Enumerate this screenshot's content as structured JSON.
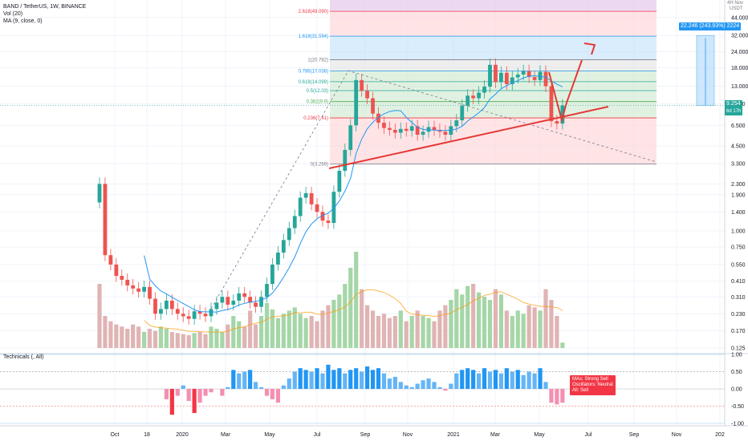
{
  "header": {
    "symbol": "BAND / TetherUS, 1W, BINANCE",
    "vol": "Vol (20)",
    "ma": "MA (9, close, 0)"
  },
  "top_right": {
    "scale": "4H Nov",
    "currency": "USDT"
  },
  "colors": {
    "up": "#26a69a",
    "down": "#ef5350",
    "vol_up": "#a5d6a7",
    "vol_down": "#e0b4b4",
    "ma": "#2196f3",
    "vol_ma": "#ff9800",
    "trend": "#e53935",
    "projection": "#2196f3"
  },
  "chart_data": [
    {
      "type": "candlestick",
      "title": "BAND / TetherUS, 1W, BINANCE",
      "y_scale": "log",
      "y_ticks": [
        "44.000",
        "32.000",
        "24.000",
        "18.000",
        "13.000",
        "9.500",
        "6.500",
        "4.500",
        "3.300",
        "2.300",
        "1.900",
        "1.400",
        "1.000",
        "0.750",
        "0.550",
        "0.410",
        "0.310",
        "0.230",
        "0.170",
        "0.125"
      ],
      "x_ticks": [
        "Oct",
        "18",
        "2020",
        "Mar",
        "May",
        "Jul",
        "Sep",
        "Nov",
        "2021",
        "Mar",
        "May",
        "Jul",
        "Sep",
        "Nov",
        "202"
      ],
      "closes": [
        2.3,
        0.65,
        0.55,
        0.45,
        0.42,
        0.38,
        0.36,
        0.34,
        0.37,
        0.3,
        0.23,
        0.25,
        0.29,
        0.25,
        0.23,
        0.22,
        0.21,
        0.24,
        0.23,
        0.22,
        0.25,
        0.28,
        0.31,
        0.27,
        0.29,
        0.33,
        0.31,
        0.28,
        0.26,
        0.31,
        0.39,
        0.55,
        0.68,
        0.85,
        1.05,
        1.3,
        1.8,
        1.95,
        1.6,
        1.4,
        1.2,
        1.15,
        2.0,
        2.9,
        4.2,
        6.5,
        14.5,
        12.0,
        10.5,
        8.0,
        6.8,
        6.2,
        6.0,
        5.7,
        6.1,
        5.9,
        6.4,
        5.5,
        5.8,
        6.3,
        6.0,
        5.8,
        5.5,
        6.4,
        7.1,
        9.2,
        11.0,
        10.5,
        11.6,
        12.9,
        19.0,
        14.0,
        16.5,
        13.5,
        15.2,
        16.0,
        17.0,
        15.3,
        14.5,
        16.8,
        13.0,
        7.0,
        6.7,
        9.25
      ],
      "last_price": "9.254",
      "countdown": "6d 17h",
      "fibonacci": [
        {
          "label": "2.618(49.090)",
          "value": 49.09
        },
        {
          "label": "1.618(31.594)",
          "value": 31.594
        },
        {
          "label": "1(20.782)",
          "value": 20.782
        },
        {
          "label": "0.786(17.038)",
          "value": 17.038
        },
        {
          "label": "0.618(14.099)",
          "value": 14.099
        },
        {
          "label": "0.5(12.03)",
          "value": 12.03
        },
        {
          "label": "0.382(9.9)",
          "value": 9.9
        },
        {
          "label": "0.236(7.41)",
          "value": 7.41
        },
        {
          "label": "0(3.269)",
          "value": 3.269
        }
      ],
      "projection_label": "22.246 (243.93%) 2224"
    },
    {
      "type": "bar",
      "title": "Vol (20)",
      "values": [
        0.6,
        0.3,
        0.25,
        0.22,
        0.2,
        0.18,
        0.22,
        0.2,
        0.15,
        0.18,
        0.16,
        0.2,
        0.18,
        0.15,
        0.14,
        0.13,
        0.12,
        0.14,
        0.15,
        0.13,
        0.2,
        0.18,
        0.15,
        0.22,
        0.3,
        0.25,
        0.2,
        0.35,
        0.22,
        0.3,
        0.42,
        0.36,
        0.28,
        0.32,
        0.35,
        0.38,
        0.32,
        0.28,
        0.3,
        0.25,
        0.35,
        0.4,
        0.45,
        0.5,
        0.6,
        0.75,
        0.9,
        0.55,
        0.4,
        0.35,
        0.3,
        0.32,
        0.28,
        0.3,
        0.35,
        0.25,
        0.3,
        0.35,
        0.3,
        0.28,
        0.25,
        0.35,
        0.4,
        0.45,
        0.55,
        0.5,
        0.58,
        0.6,
        0.52,
        0.48,
        0.45,
        0.55,
        0.5,
        0.35,
        0.3,
        0.35,
        0.32,
        0.4,
        0.38,
        0.35,
        0.55,
        0.45,
        0.3,
        0.05
      ]
    },
    {
      "type": "bar",
      "title": "Technicals (, All)",
      "y_ticks": [
        "1.00",
        "0.50",
        "0.00",
        "-0.50",
        "-1.00"
      ],
      "values": [
        0,
        0,
        0,
        0,
        0,
        0,
        0,
        0,
        0,
        0,
        0,
        0,
        -0.3,
        -0.75,
        -0.2,
        0.1,
        -0.35,
        -0.7,
        -0.4,
        -0.2,
        -0.1,
        0.0,
        -0.2,
        0.05,
        0.55,
        0.45,
        0.5,
        0.55,
        0.2,
        0.05,
        -0.2,
        -0.3,
        -0.4,
        0.1,
        0.3,
        0.5,
        0.6,
        0.55,
        0.5,
        0.6,
        0.45,
        0.7,
        0.55,
        0.6,
        0.45,
        0.55,
        0.6,
        0.5,
        0.65,
        0.55,
        0.6,
        0.45,
        0.3,
        0.35,
        0.2,
        0.1,
        0.05,
        0.15,
        0.25,
        0.3,
        0.2,
        0.05,
        -0.05,
        0.15,
        0.45,
        0.55,
        0.6,
        0.55,
        0.45,
        0.6,
        0.5,
        0.55,
        0.45,
        0.6,
        0.5,
        0.55,
        0.4,
        0.5,
        0.45,
        0.6,
        0.2,
        -0.4,
        -0.45,
        -0.4
      ],
      "signals": {
        "mas": "MAs:    Strong Sell",
        "osc": "Oscillators: Neutral",
        "all": "All:   Sell"
      }
    }
  ]
}
